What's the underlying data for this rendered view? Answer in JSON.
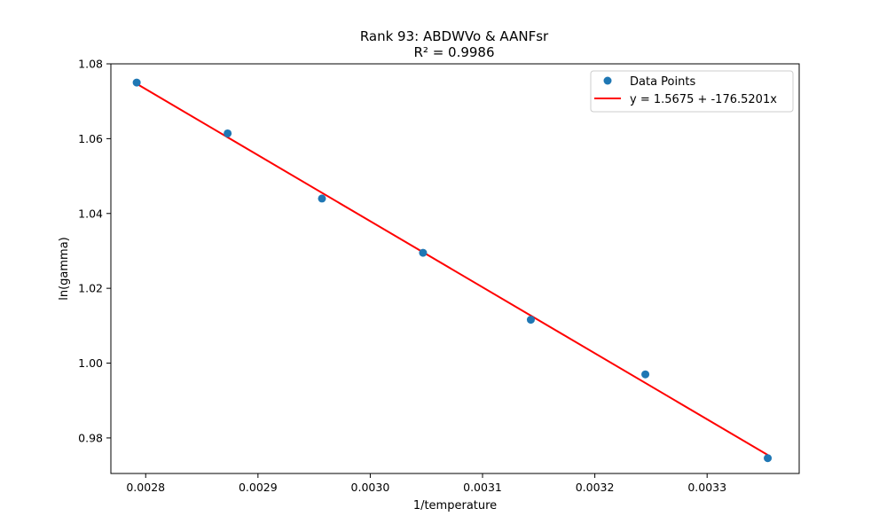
{
  "chart_data": {
    "type": "scatter",
    "title": "Rank 93: ABDWVo & AANFsr",
    "subtitle": "R² = 0.9986",
    "xlabel": "1/temperature",
    "ylabel": "ln(gamma)",
    "xlim": [
      0.002769,
      0.003382
    ],
    "ylim": [
      0.9705,
      1.08
    ],
    "x_ticks": [
      0.0028,
      0.0029,
      0.003,
      0.0031,
      0.0032,
      0.0033
    ],
    "x_tick_labels": [
      "0.0028",
      "0.0029",
      "0.0030",
      "0.0031",
      "0.0032",
      "0.0033"
    ],
    "y_ticks": [
      0.98,
      1.0,
      1.02,
      1.04,
      1.06,
      1.08
    ],
    "y_tick_labels": [
      "0.98",
      "1.00",
      "1.02",
      "1.04",
      "1.06",
      "1.08"
    ],
    "grid": false,
    "legend_position": "top-right",
    "series": [
      {
        "name": "Data Points",
        "kind": "scatter",
        "color": "#1f77b4",
        "points": [
          {
            "x": 0.002792,
            "y": 1.075
          },
          {
            "x": 0.002873,
            "y": 1.0614
          },
          {
            "x": 0.002957,
            "y": 1.044
          },
          {
            "x": 0.003047,
            "y": 1.0295
          },
          {
            "x": 0.003143,
            "y": 1.0116
          },
          {
            "x": 0.003245,
            "y": 0.997
          },
          {
            "x": 0.003354,
            "y": 0.9746
          }
        ]
      },
      {
        "name": "y = 1.5675 + -176.5201x",
        "kind": "line",
        "color": "#ff0000",
        "intercept": 1.5675,
        "slope": -176.5201
      }
    ]
  }
}
